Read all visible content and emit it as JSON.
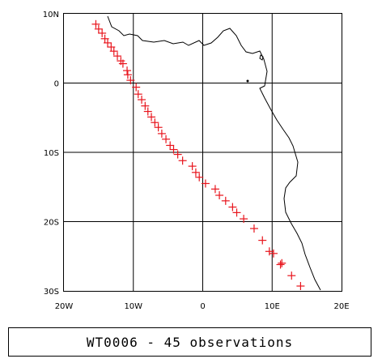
{
  "map": {
    "lon_range": [
      -20,
      20
    ],
    "lat_range": [
      -30,
      10
    ],
    "grid": true,
    "x_ticks": [
      {
        "value": -20,
        "label": "20W"
      },
      {
        "value": -10,
        "label": "10W"
      },
      {
        "value": 0,
        "label": "0"
      },
      {
        "value": 10,
        "label": "10E"
      },
      {
        "value": 20,
        "label": "20E"
      }
    ],
    "y_ticks": [
      {
        "value": 10,
        "label": "10N"
      },
      {
        "value": 0,
        "label": "0"
      },
      {
        "value": -10,
        "label": "10S"
      },
      {
        "value": -20,
        "label": "20S"
      },
      {
        "value": -30,
        "label": "30S"
      }
    ],
    "colors": {
      "observation": "#e8141c",
      "coastline": "#000000",
      "grid": "#000000"
    }
  },
  "chart_data": {
    "type": "scatter",
    "marker": "plus",
    "x": [
      -15.4,
      -15.0,
      -14.5,
      -14.1,
      -13.7,
      -13.2,
      -12.8,
      -12.3,
      -11.8,
      -11.5,
      -10.9,
      -10.8,
      -10.4,
      -9.6,
      -9.3,
      -8.8,
      -8.3,
      -7.9,
      -7.4,
      -6.9,
      -6.4,
      -5.9,
      -5.3,
      -4.7,
      -4.2,
      -3.6,
      -2.9,
      -1.5,
      -1.0,
      -0.5,
      0.4,
      1.8,
      2.4,
      3.3,
      4.3,
      4.9,
      5.9,
      7.4,
      8.6,
      9.6,
      10.2,
      11.4,
      11.2,
      12.8,
      14.1
    ],
    "y": [
      8.5,
      7.8,
      7.2,
      6.4,
      5.8,
      5.2,
      4.6,
      3.9,
      3.2,
      2.8,
      1.8,
      1.2,
      0.4,
      -0.6,
      -1.6,
      -2.4,
      -3.3,
      -4.1,
      -4.9,
      -5.7,
      -6.4,
      -7.3,
      -8.1,
      -9.0,
      -9.6,
      -10.3,
      -11.2,
      -12.0,
      -12.9,
      -13.6,
      -14.5,
      -15.3,
      -16.2,
      -17.0,
      -17.9,
      -18.7,
      -19.6,
      -21.0,
      -22.7,
      -24.3,
      -24.6,
      -26.0,
      -26.2,
      -27.8,
      -29.3
    ],
    "xlim": [
      -20,
      20
    ],
    "ylim": [
      -30,
      10
    ]
  },
  "caption": {
    "text": "WT0006 - 45 observations"
  }
}
